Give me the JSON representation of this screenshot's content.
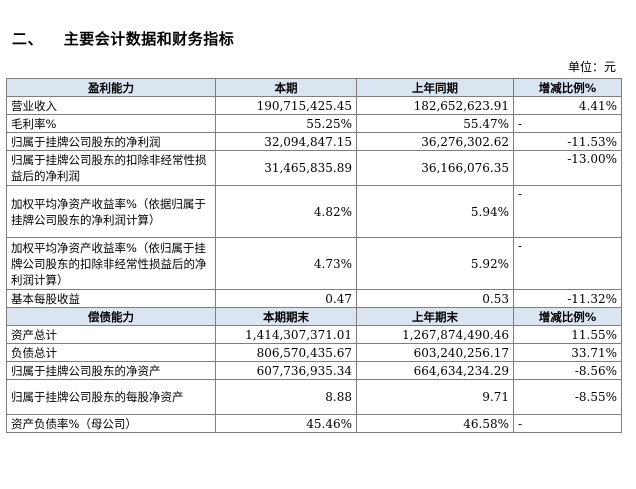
{
  "section": {
    "number": "二、",
    "title": "主要会计数据和财务指标"
  },
  "unit_label": "单位：元",
  "profitability": {
    "header": [
      "盈利能力",
      "本期",
      "上年同期",
      "增减比例%"
    ],
    "rows": [
      {
        "label": "营业收入",
        "current": "190,715,425.45",
        "prior": "182,652,623.91",
        "change": "4.41%"
      },
      {
        "label": "毛利率%",
        "current": "55.25%",
        "prior": "55.47%",
        "change": "-"
      },
      {
        "label": "归属于挂牌公司股东的净利润",
        "current": "32,094,847.15",
        "prior": "36,276,302.62",
        "change": "-11.53%"
      },
      {
        "label": "归属于挂牌公司股东的扣除非经常性损益后的净利润",
        "current": "31,465,835.89",
        "prior": "36,166,076.35",
        "change": "-13.00%"
      },
      {
        "label": "加权平均净资产收益率%（依据归属于挂牌公司股东的净利润计算）",
        "current": "4.82%",
        "prior": "5.94%",
        "change": "-"
      },
      {
        "label": "加权平均净资产收益率%（依归属于挂牌公司股东的扣除非经常性损益后的净利润计算）",
        "current": "4.73%",
        "prior": "5.92%",
        "change": "-"
      },
      {
        "label": "基本每股收益",
        "current": "0.47",
        "prior": "0.53",
        "change": "-11.32%"
      }
    ]
  },
  "solvency": {
    "header": [
      "偿债能力",
      "本期期末",
      "上年期末",
      "增减比例%"
    ],
    "rows": [
      {
        "label": "资产总计",
        "current": "1,414,307,371.01",
        "prior": "1,267,874,490.46",
        "change": "11.55%"
      },
      {
        "label": "负债总计",
        "current": "806,570,435.67",
        "prior": "603,240,256.17",
        "change": "33.71%"
      },
      {
        "label": "归属于挂牌公司股东的净资产",
        "current": "607,736,935.34",
        "prior": "664,634,234.29",
        "change": "-8.56%"
      },
      {
        "label": "归属于挂牌公司股东的每股净资产",
        "current": "8.88",
        "prior": "9.71",
        "change": "-8.55%"
      },
      {
        "label": "资产负债率%（母公司）",
        "current": "45.46%",
        "prior": "46.58%",
        "change": "-"
      }
    ]
  }
}
